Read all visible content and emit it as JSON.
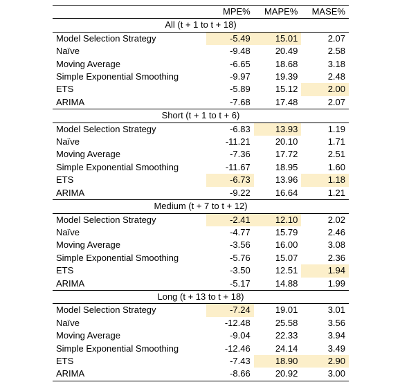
{
  "header": {
    "columns": [
      "MPE%",
      "MAPE%",
      "MASE%"
    ]
  },
  "sections": [
    {
      "title": "All (t + 1 to t + 18)",
      "rows": [
        {
          "method": "Model Selection Strategy",
          "values": [
            "-5.49",
            "15.01",
            "2.07"
          ],
          "highlight": [
            true,
            true,
            false
          ]
        },
        {
          "method": "Naïve",
          "values": [
            "-9.48",
            "20.49",
            "2.58"
          ],
          "highlight": [
            false,
            false,
            false
          ]
        },
        {
          "method": "Moving Average",
          "values": [
            "-6.65",
            "18.68",
            "3.18"
          ],
          "highlight": [
            false,
            false,
            false
          ]
        },
        {
          "method": "Simple Exponential Smoothing",
          "values": [
            "-9.97",
            "19.39",
            "2.48"
          ],
          "highlight": [
            false,
            false,
            false
          ]
        },
        {
          "method": "ETS",
          "values": [
            "-5.89",
            "15.12",
            "2.00"
          ],
          "highlight": [
            false,
            false,
            true
          ]
        },
        {
          "method": "ARIMA",
          "values": [
            "-7.68",
            "17.48",
            "2.07"
          ],
          "highlight": [
            false,
            false,
            false
          ]
        }
      ]
    },
    {
      "title": "Short (t + 1 to t + 6)",
      "rows": [
        {
          "method": "Model Selection Strategy",
          "values": [
            "-6.83",
            "13.93",
            "1.19"
          ],
          "highlight": [
            false,
            true,
            false
          ]
        },
        {
          "method": "Naïve",
          "values": [
            "-11.21",
            "20.10",
            "1.71"
          ],
          "highlight": [
            false,
            false,
            false
          ]
        },
        {
          "method": "Moving Average",
          "values": [
            "-7.36",
            "17.72",
            "2.51"
          ],
          "highlight": [
            false,
            false,
            false
          ]
        },
        {
          "method": "Simple Exponential Smoothing",
          "values": [
            "-11.67",
            "18.95",
            "1.60"
          ],
          "highlight": [
            false,
            false,
            false
          ]
        },
        {
          "method": "ETS",
          "values": [
            "-6.73",
            "13.96",
            "1.18"
          ],
          "highlight": [
            true,
            false,
            true
          ]
        },
        {
          "method": "ARIMA",
          "values": [
            "-9.22",
            "16.64",
            "1.21"
          ],
          "highlight": [
            false,
            false,
            false
          ]
        }
      ]
    },
    {
      "title": "Medium (t + 7 to t + 12)",
      "rows": [
        {
          "method": "Model Selection Strategy",
          "values": [
            "-2.41",
            "12.10",
            "2.02"
          ],
          "highlight": [
            true,
            true,
            false
          ]
        },
        {
          "method": "Naïve",
          "values": [
            "-4.77",
            "15.79",
            "2.46"
          ],
          "highlight": [
            false,
            false,
            false
          ]
        },
        {
          "method": "Moving Average",
          "values": [
            "-3.56",
            "16.00",
            "3.08"
          ],
          "highlight": [
            false,
            false,
            false
          ]
        },
        {
          "method": "Simple Exponential Smoothing",
          "values": [
            "-5.76",
            "15.07",
            "2.36"
          ],
          "highlight": [
            false,
            false,
            false
          ]
        },
        {
          "method": "ETS",
          "values": [
            "-3.50",
            "12.51",
            "1.94"
          ],
          "highlight": [
            false,
            false,
            true
          ]
        },
        {
          "method": "ARIMA",
          "values": [
            "-5.17",
            "14.88",
            "1.99"
          ],
          "highlight": [
            false,
            false,
            false
          ]
        }
      ]
    },
    {
      "title": "Long (t + 13 to t + 18)",
      "rows": [
        {
          "method": "Model Selection Strategy",
          "values": [
            "-7.24",
            "19.01",
            "3.01"
          ],
          "highlight": [
            true,
            false,
            false
          ]
        },
        {
          "method": "Naïve",
          "values": [
            "-12.48",
            "25.58",
            "3.56"
          ],
          "highlight": [
            false,
            false,
            false
          ]
        },
        {
          "method": "Moving Average",
          "values": [
            "-9.04",
            "22.33",
            "3.94"
          ],
          "highlight": [
            false,
            false,
            false
          ]
        },
        {
          "method": "Simple Exponential Smoothing",
          "values": [
            "-12.46",
            "24.14",
            "3.49"
          ],
          "highlight": [
            false,
            false,
            false
          ]
        },
        {
          "method": "ETS",
          "values": [
            "-7.43",
            "18.90",
            "2.90"
          ],
          "highlight": [
            false,
            true,
            true
          ]
        },
        {
          "method": "ARIMA",
          "values": [
            "-8.66",
            "20.92",
            "3.00"
          ],
          "highlight": [
            false,
            false,
            false
          ]
        }
      ]
    }
  ]
}
